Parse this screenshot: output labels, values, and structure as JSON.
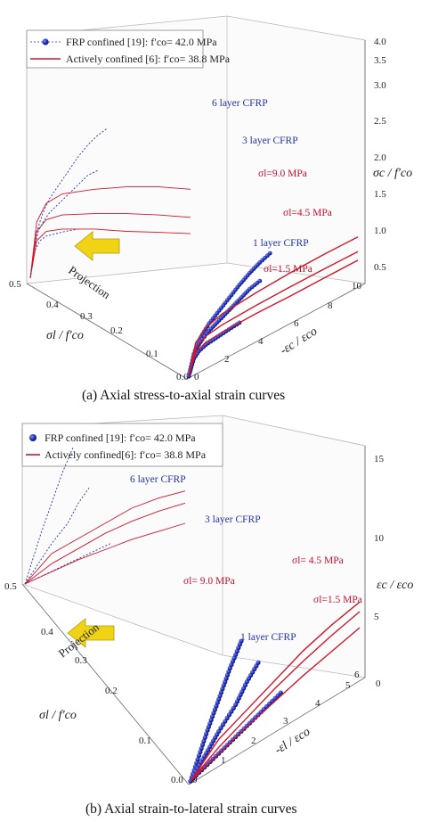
{
  "chart_data": [
    {
      "type": "line",
      "caption": "(a) Axial stress-to-axial strain curves",
      "legend": [
        {
          "name": "FRP confined [19]: f′co= 42.0 MPa",
          "marker": "circle",
          "color": "#1f2fb0"
        },
        {
          "name": "Actively confined [6]: f′co= 38.8 MPa",
          "marker": "line",
          "color": "#d0182b"
        }
      ],
      "x_axis": {
        "label": "-εc / εco",
        "ticks": [
          "0",
          "2",
          "4",
          "6",
          "8",
          "10"
        ]
      },
      "y_axis": {
        "label": "σl / f′co",
        "ticks": [
          "0.0",
          "0.1",
          "0.2",
          "0.3",
          "0.4",
          "0.5"
        ]
      },
      "z_axis": {
        "label": "σc / f′co",
        "ticks": [
          "0.5",
          "1.0",
          "1.5",
          "2.0",
          "2.5",
          "3.0",
          "3.5",
          "4.0"
        ]
      },
      "annotations": {
        "series": [
          "6 layer CFRP",
          "3 layer CFRP",
          "1 layer CFRP"
        ],
        "confinement": [
          "σl=9.0 MPa",
          "σl=4.5 MPa",
          "σl=1.5 MPa"
        ],
        "projection": "Projection"
      },
      "series": [
        {
          "name": "6 layer CFRP",
          "group": "FRP",
          "x": [
            0,
            0.3,
            0.5,
            0.8,
            1.2,
            1.8,
            2.4,
            3.0,
            3.6,
            4.2,
            4.8
          ],
          "z": [
            0,
            0.8,
            1.1,
            1.4,
            1.7,
            2.0,
            2.3,
            2.6,
            2.85,
            3.05,
            3.2
          ]
        },
        {
          "name": "3 layer CFRP",
          "group": "FRP",
          "x": [
            0,
            0.3,
            0.5,
            0.8,
            1.2,
            1.8,
            2.4,
            3.0,
            3.6,
            4.2
          ],
          "z": [
            0,
            0.7,
            1.0,
            1.2,
            1.4,
            1.6,
            1.8,
            2.0,
            2.2,
            2.3
          ]
        },
        {
          "name": "1 layer CFRP",
          "group": "FRP",
          "x": [
            0,
            0.3,
            0.6,
            1.0,
            1.6,
            2.2,
            3.0
          ],
          "z": [
            0,
            0.6,
            0.8,
            0.9,
            0.95,
            1.0,
            1.05
          ]
        },
        {
          "name": "σl=9.0 MPa",
          "group": "Active",
          "x": [
            0,
            0.4,
            1.0,
            2.0,
            4.0,
            6.0,
            8.0,
            10.0
          ],
          "z": [
            0,
            1.2,
            1.6,
            1.8,
            1.9,
            1.95,
            1.95,
            1.9
          ]
        },
        {
          "name": "σl=4.5 MPa",
          "group": "Active",
          "x": [
            0,
            0.4,
            1.0,
            2.0,
            4.0,
            6.0,
            8.0,
            10.0
          ],
          "z": [
            0,
            1.0,
            1.25,
            1.35,
            1.38,
            1.38,
            1.35,
            1.3
          ]
        },
        {
          "name": "σl=1.5 MPa",
          "group": "Active",
          "x": [
            0,
            0.4,
            1.0,
            2.0,
            4.0,
            6.0,
            8.0,
            10.0
          ],
          "z": [
            0,
            0.8,
            1.0,
            1.05,
            1.05,
            1.0,
            0.98,
            0.95
          ]
        }
      ]
    },
    {
      "type": "line",
      "caption": "(b) Axial strain-to-lateral strain curves",
      "legend": [
        {
          "name": "FRP confined [19]: f′co= 42.0 MPa",
          "marker": "circle",
          "color": "#1f2fb0"
        },
        {
          "name": "Actively confined[6]: f′co= 38.8 MPa",
          "marker": "line",
          "color": "#d0182b"
        }
      ],
      "x_axis": {
        "label": "-εl / εco",
        "ticks": [
          "0",
          "1",
          "2",
          "3",
          "4",
          "5",
          "6"
        ]
      },
      "y_axis": {
        "label": "σl / f′co",
        "ticks": [
          "0.0",
          "0.1",
          "0.2",
          "0.3",
          "0.4",
          "0.5"
        ]
      },
      "z_axis": {
        "label": "εc / εco",
        "ticks": [
          "0",
          "5",
          "10",
          "15"
        ]
      },
      "annotations": {
        "series": [
          "6 layer CFRP",
          "3 layer CFRP",
          "1 layer CFRP"
        ],
        "confinement": [
          "σl= 9.0 MPa",
          "σl= 4.5 MPa",
          "σl=1.5 MPa"
        ],
        "projection": "Projection"
      },
      "series": [
        {
          "name": "6 layer CFRP",
          "group": "FRP",
          "x": [
            0,
            0.3,
            0.6,
            1.0,
            1.4,
            1.8
          ],
          "z": [
            0,
            2.5,
            5.0,
            8.0,
            11.0,
            13.5
          ]
        },
        {
          "name": "3 layer CFRP",
          "group": "FRP",
          "x": [
            0,
            0.5,
            1.0,
            1.6,
            2.0,
            2.4
          ],
          "z": [
            0,
            2.0,
            4.0,
            6.0,
            8.0,
            9.5
          ]
        },
        {
          "name": "1 layer CFRP",
          "group": "FRP",
          "x": [
            0,
            0.8,
            1.6,
            2.4,
            3.2
          ],
          "z": [
            0,
            1.0,
            2.0,
            3.0,
            4.0
          ]
        },
        {
          "name": "σl= 9.0 MPa",
          "group": "Active",
          "x": [
            0,
            1,
            2,
            3,
            4,
            5,
            6
          ],
          "z": [
            0,
            3,
            4.5,
            6,
            7.5,
            8.5,
            9.2
          ]
        },
        {
          "name": "σl= 4.5 MPa",
          "group": "Active",
          "x": [
            0,
            1,
            2,
            3,
            4,
            5,
            6
          ],
          "z": [
            0,
            2,
            3.5,
            5,
            6.2,
            7.2,
            8
          ]
        },
        {
          "name": "σl=1.5 MPa",
          "group": "Active",
          "x": [
            0,
            1,
            2,
            3,
            4,
            5,
            6
          ],
          "z": [
            0,
            1.2,
            2.4,
            3.4,
            4.4,
            5.2,
            6
          ]
        }
      ]
    }
  ]
}
